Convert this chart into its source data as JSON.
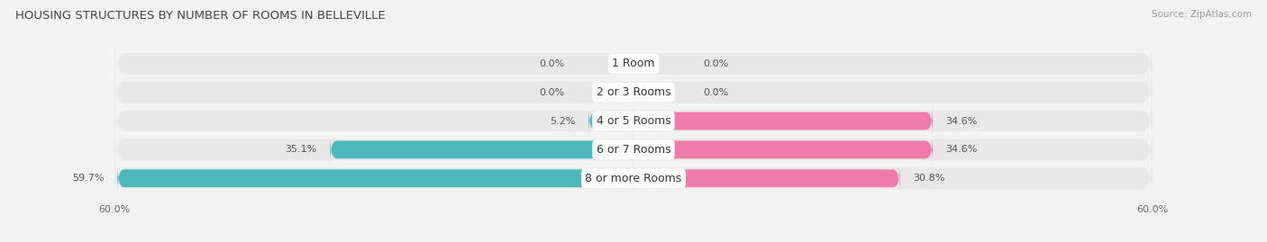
{
  "title": "HOUSING STRUCTURES BY NUMBER OF ROOMS IN BELLEVILLE",
  "source": "Source: ZipAtlas.com",
  "categories": [
    "1 Room",
    "2 or 3 Rooms",
    "4 or 5 Rooms",
    "6 or 7 Rooms",
    "8 or more Rooms"
  ],
  "owner_values": [
    0.0,
    0.0,
    5.2,
    35.1,
    59.7
  ],
  "renter_values": [
    0.0,
    0.0,
    34.6,
    34.6,
    30.8
  ],
  "owner_color": "#4db8bc",
  "renter_color": "#f07aaa",
  "background_color": "#f2f2f2",
  "row_bg_color": "#e8e8e8",
  "label_fontsize": 8,
  "category_fontsize": 9,
  "title_fontsize": 9.5,
  "source_fontsize": 7.5,
  "bar_height": 0.62,
  "xlim_abs": 60
}
